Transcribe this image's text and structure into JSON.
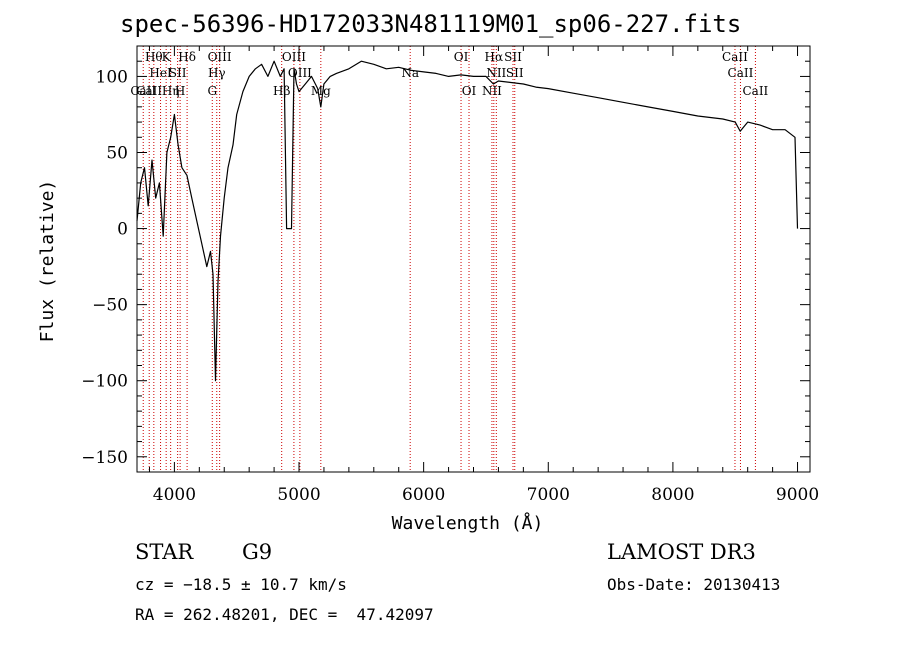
{
  "chart_data": {
    "type": "line",
    "title": "spec-56396-HD172033N481119M01_sp06-227.fits",
    "xlabel": "Wavelength (Å)",
    "ylabel": "Flux (relative)",
    "xlim": [
      3700,
      9100
    ],
    "ylim": [
      -160,
      120
    ],
    "xticks": [
      4000,
      5000,
      6000,
      7000,
      8000,
      9000
    ],
    "yticks": [
      -150,
      -100,
      -50,
      0,
      50,
      100
    ],
    "series": [
      {
        "name": "flux",
        "x": [
          3700,
          3730,
          3760,
          3790,
          3820,
          3850,
          3880,
          3910,
          3940,
          3970,
          4000,
          4030,
          4060,
          4100,
          4140,
          4180,
          4220,
          4260,
          4290,
          4310,
          4330,
          4350,
          4370,
          4400,
          4430,
          4470,
          4500,
          4550,
          4600,
          4650,
          4700,
          4750,
          4800,
          4850,
          4880,
          4900,
          4920,
          4940,
          4960,
          4980,
          5000,
          5050,
          5100,
          5150,
          5175,
          5200,
          5250,
          5300,
          5400,
          5500,
          5600,
          5700,
          5800,
          5900,
          6000,
          6100,
          6200,
          6300,
          6400,
          6500,
          6560,
          6600,
          6700,
          6800,
          6900,
          7000,
          7200,
          7400,
          7600,
          7800,
          8000,
          8200,
          8400,
          8500,
          8540,
          8600,
          8700,
          8800,
          8900,
          8980,
          9000
        ],
        "y": [
          5,
          30,
          40,
          15,
          45,
          20,
          30,
          -5,
          50,
          60,
          75,
          55,
          40,
          35,
          20,
          5,
          -10,
          -25,
          -15,
          -30,
          -100,
          -35,
          -5,
          20,
          40,
          55,
          75,
          90,
          100,
          105,
          108,
          100,
          110,
          100,
          105,
          0,
          0,
          0,
          105,
          95,
          90,
          95,
          100,
          92,
          80,
          95,
          100,
          102,
          105,
          110,
          108,
          105,
          106,
          104,
          103,
          102,
          100,
          101,
          100,
          100,
          95,
          97,
          96,
          95,
          93,
          92,
          89,
          86,
          83,
          80,
          77,
          74,
          72,
          70,
          64,
          70,
          68,
          65,
          65,
          60,
          0
        ]
      }
    ],
    "lines": [
      {
        "w": 3750,
        "label": "CaII",
        "row": 2
      },
      {
        "w": 3798,
        "label": "CaII",
        "row": 2
      },
      {
        "w": 3835,
        "label": "Hθ",
        "row": 0
      },
      {
        "w": 3889,
        "label": "HeI",
        "row": 1
      },
      {
        "w": 3934,
        "label": "K",
        "row": 0
      },
      {
        "w": 3970,
        "label": "Hη",
        "row": 2
      },
      {
        "w": 4026,
        "label": "SII",
        "row": 1
      },
      {
        "w": 4046,
        "label": "H",
        "row": 2
      },
      {
        "w": 4102,
        "label": "Hδ",
        "row": 0
      },
      {
        "w": 4304,
        "label": "G",
        "row": 2
      },
      {
        "w": 4340,
        "label": "Hγ",
        "row": 1
      },
      {
        "w": 4363,
        "label": "OIII",
        "row": 0
      },
      {
        "w": 4861,
        "label": "Hβ",
        "row": 2
      },
      {
        "w": 4959,
        "label": "OIII",
        "row": 0
      },
      {
        "w": 5007,
        "label": "OIII",
        "row": 1
      },
      {
        "w": 5175,
        "label": "Mg",
        "row": 2
      },
      {
        "w": 5892,
        "label": "Na",
        "row": 1
      },
      {
        "w": 6300,
        "label": "OI",
        "row": 0
      },
      {
        "w": 6364,
        "label": "OI",
        "row": 2
      },
      {
        "w": 6548,
        "label": "NII",
        "row": 2
      },
      {
        "w": 6563,
        "label": "Hα",
        "row": 0
      },
      {
        "w": 6583,
        "label": "NII",
        "row": 1
      },
      {
        "w": 6717,
        "label": "SII",
        "row": 0
      },
      {
        "w": 6731,
        "label": "SII",
        "row": 1
      },
      {
        "w": 8498,
        "label": "CaII",
        "row": 0
      },
      {
        "w": 8542,
        "label": "CaII",
        "row": 1
      },
      {
        "w": 8662,
        "label": "CaII",
        "row": 2
      }
    ]
  },
  "info": {
    "class": "STAR",
    "subclass": "G9",
    "survey": "LAMOST DR3",
    "cz": "cz = −18.5 ± 10.7 km/s",
    "obs_date": "Obs-Date: 20130413",
    "radec": "RA = 262.48201, DEC =  47.42097"
  },
  "colors": {
    "axis": "#000000",
    "line": "#000000",
    "marker": "#cc0000"
  }
}
